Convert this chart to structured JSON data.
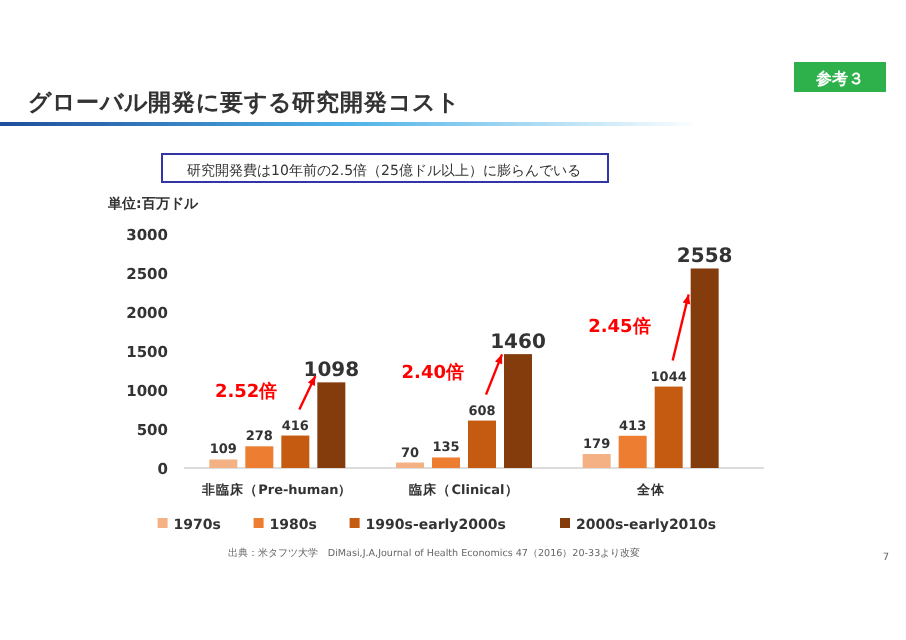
{
  "chart_data": {
    "type": "bar",
    "title": "グローバル開発に要する研究開発コスト",
    "subtitle": "研究開発費は10年前の2.5倍（25億ドル以上）に膨らんでいる",
    "ylabel": "単位:百万ドル",
    "categories": [
      "非臨床（Pre-human）",
      "臨床（Clinical）",
      "全体"
    ],
    "series": [
      {
        "name": "1970s",
        "color": "#f4b183",
        "values": [
          109,
          70,
          179
        ]
      },
      {
        "name": "1980s",
        "color": "#ed7d31",
        "values": [
          278,
          135,
          413
        ]
      },
      {
        "name": "1990s-early2000s",
        "color": "#c55a11",
        "values": [
          416,
          608,
          1044
        ]
      },
      {
        "name": "2000s-early2010s",
        "color": "#843c0c",
        "values": [
          1098,
          1460,
          2558
        ]
      }
    ],
    "ylim": [
      0,
      3000
    ],
    "yticks": [
      0,
      500,
      1000,
      1500,
      2000,
      2500,
      3000
    ],
    "grid": false,
    "legend": "bottom",
    "data_labels": true,
    "annotations": [
      "2.52倍",
      "2.40倍",
      "2.45倍",
      "参考３",
      "出典：米タフツ大学　DiMasi,J.A,Journal of Health Economics 47（2016）20-33より改変",
      "7"
    ]
  }
}
